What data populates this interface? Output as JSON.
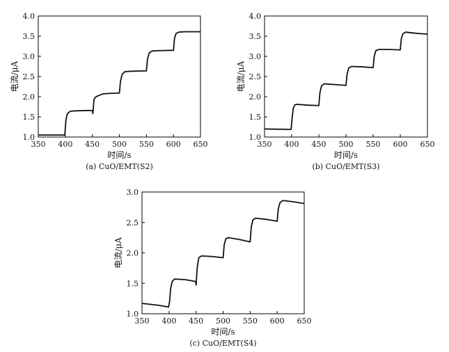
{
  "chart_data": [
    {
      "type": "line",
      "caption": "(a) CuO/EMT(S2)",
      "xlabel": "时间/s",
      "ylabel": "电流/μA",
      "xlim": [
        350,
        650
      ],
      "ylim": [
        1.0,
        4.0
      ],
      "xticks": [
        "350",
        "400",
        "450",
        "500",
        "550",
        "600",
        "650"
      ],
      "yticks": [
        "1.0",
        "1.5",
        "2.0",
        "2.5",
        "3.0",
        "3.5",
        "4.0"
      ],
      "series": [
        {
          "values": [
            [
              350,
              1.05
            ],
            [
              399,
              1.05
            ],
            [
              401,
              1.4
            ],
            [
              403,
              1.55
            ],
            [
              406,
              1.61
            ],
            [
              410,
              1.64
            ],
            [
              420,
              1.65
            ],
            [
              450,
              1.66
            ],
            [
              451,
              1.58
            ],
            [
              453,
              1.93
            ],
            [
              456,
              1.99
            ],
            [
              460,
              2.02
            ],
            [
              470,
              2.07
            ],
            [
              480,
              2.08
            ],
            [
              500,
              2.09
            ],
            [
              502,
              2.38
            ],
            [
              505,
              2.55
            ],
            [
              510,
              2.62
            ],
            [
              520,
              2.63
            ],
            [
              550,
              2.64
            ],
            [
              552,
              2.93
            ],
            [
              555,
              3.08
            ],
            [
              560,
              3.13
            ],
            [
              570,
              3.14
            ],
            [
              600,
              3.15
            ],
            [
              602,
              3.45
            ],
            [
              605,
              3.57
            ],
            [
              610,
              3.6
            ],
            [
              620,
              3.61
            ],
            [
              650,
              3.61
            ]
          ]
        }
      ]
    },
    {
      "type": "line",
      "caption": "(b) CuO/EMT(S3)",
      "xlabel": "时间/s",
      "ylabel": "电流/μA",
      "xlim": [
        350,
        650
      ],
      "ylim": [
        1.0,
        4.0
      ],
      "xticks": [
        "350",
        "400",
        "450",
        "500",
        "550",
        "600",
        "650"
      ],
      "yticks": [
        "1.0",
        "1.5",
        "2.0",
        "2.5",
        "3.0",
        "3.5",
        "4.0"
      ],
      "series": [
        {
          "values": [
            [
              350,
              1.2
            ],
            [
              399,
              1.19
            ],
            [
              401,
              1.5
            ],
            [
              403,
              1.72
            ],
            [
              406,
              1.8
            ],
            [
              410,
              1.81
            ],
            [
              430,
              1.79
            ],
            [
              450,
              1.78
            ],
            [
              452,
              2.1
            ],
            [
              455,
              2.27
            ],
            [
              460,
              2.32
            ],
            [
              480,
              2.3
            ],
            [
              500,
              2.28
            ],
            [
              502,
              2.55
            ],
            [
              505,
              2.71
            ],
            [
              510,
              2.75
            ],
            [
              530,
              2.74
            ],
            [
              550,
              2.72
            ],
            [
              552,
              3.0
            ],
            [
              555,
              3.14
            ],
            [
              560,
              3.17
            ],
            [
              580,
              3.17
            ],
            [
              600,
              3.16
            ],
            [
              602,
              3.45
            ],
            [
              605,
              3.56
            ],
            [
              610,
              3.6
            ],
            [
              630,
              3.57
            ],
            [
              650,
              3.55
            ]
          ]
        }
      ]
    },
    {
      "type": "line",
      "caption": "(c) CuO/EMT(S4)",
      "xlabel": "时间/s",
      "ylabel": "电流/μA",
      "xlim": [
        350,
        650
      ],
      "ylim": [
        1.0,
        3.0
      ],
      "xticks": [
        "350",
        "400",
        "450",
        "500",
        "550",
        "600",
        "650"
      ],
      "yticks": [
        "1.0",
        "1.5",
        "2.0",
        "2.5",
        "3.0"
      ],
      "series": [
        {
          "values": [
            [
              350,
              1.17
            ],
            [
              380,
              1.14
            ],
            [
              399,
              1.11
            ],
            [
              401,
              1.2
            ],
            [
              403,
              1.42
            ],
            [
              406,
              1.53
            ],
            [
              410,
              1.57
            ],
            [
              430,
              1.56
            ],
            [
              449,
              1.53
            ],
            [
              450,
              1.47
            ],
            [
              452,
              1.75
            ],
            [
              455,
              1.92
            ],
            [
              460,
              1.95
            ],
            [
              480,
              1.94
            ],
            [
              500,
              1.92
            ],
            [
              502,
              2.13
            ],
            [
              505,
              2.23
            ],
            [
              510,
              2.25
            ],
            [
              530,
              2.22
            ],
            [
              550,
              2.18
            ],
            [
              552,
              2.42
            ],
            [
              555,
              2.54
            ],
            [
              560,
              2.57
            ],
            [
              580,
              2.55
            ],
            [
              600,
              2.52
            ],
            [
              602,
              2.72
            ],
            [
              605,
              2.82
            ],
            [
              610,
              2.86
            ],
            [
              630,
              2.84
            ],
            [
              650,
              2.81
            ]
          ]
        }
      ]
    }
  ]
}
